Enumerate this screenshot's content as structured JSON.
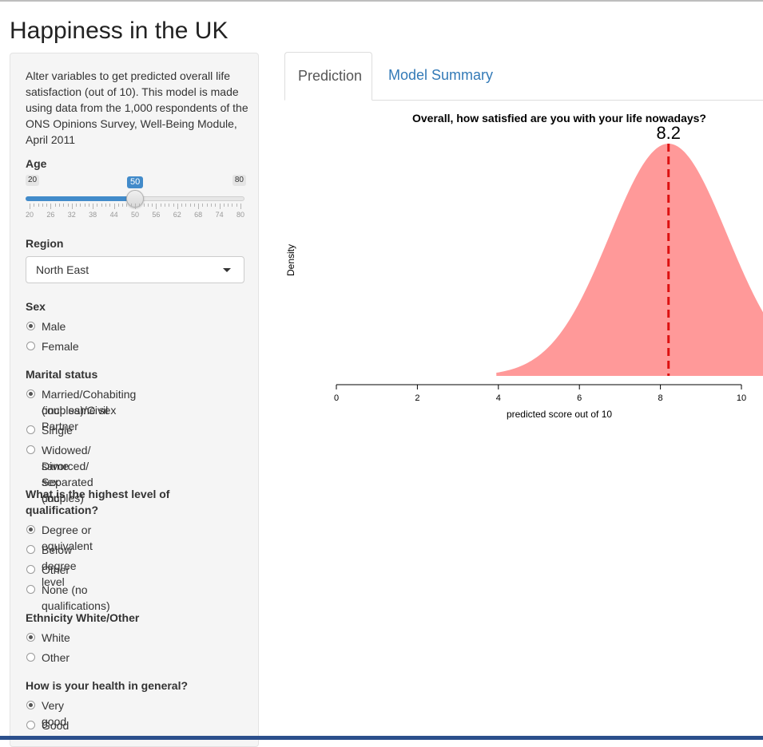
{
  "app": {
    "title": "Happiness in the UK"
  },
  "sidebar": {
    "intro": "Alter variables to get predicted overall life satisfaction (out of 10). This model is made using data from the 1,000 respondents of the ONS Opinions Survey, Well-Being Module, April 2011",
    "age": {
      "label": "Age",
      "min": "20",
      "max": "80",
      "value": "50",
      "value_fraction": 0.5,
      "tick_labels": [
        "20",
        "26",
        "32",
        "38",
        "44",
        "50",
        "56",
        "62",
        "68",
        "74",
        "80"
      ]
    },
    "region": {
      "label": "Region",
      "selected": "North East"
    },
    "sex": {
      "label": "Sex",
      "options": [
        "Male",
        "Female"
      ],
      "selected_index": 0
    },
    "marital": {
      "label": "Marital status",
      "options": [
        [
          "Married/Cohabiting (incl. same sex",
          "couples)/Civil Partner"
        ],
        [
          "Single"
        ],
        [
          "Widowed/ Divorced/ Separated (incl.",
          "same sex couples)"
        ]
      ],
      "selected_index": 0
    },
    "qualification": {
      "label_lines": [
        "What is the highest level of",
        "qualification?"
      ],
      "options": [
        "Degree or equivalent",
        "Below degree level",
        "Other",
        "None (no qualifications)"
      ],
      "selected_index": 0
    },
    "ethnicity": {
      "label": "Ethnicity White/Other",
      "options": [
        "White",
        "Other"
      ],
      "selected_index": 0
    },
    "health": {
      "label": "How is your health in general?",
      "options": [
        "Very good",
        "Good"
      ],
      "selected_index": 0
    }
  },
  "tabs": [
    {
      "label": "Prediction",
      "active": true
    },
    {
      "label": "Model Summary",
      "active": false
    }
  ],
  "chart_data": {
    "type": "area",
    "title": "Overall, how satisfied are you with your life nowadays?",
    "xlabel": "predicted score out of 10",
    "ylabel": "Density",
    "prediction": 8.2,
    "prediction_label": "8.2",
    "xlim": [
      0,
      10
    ],
    "x_ticks": [
      0,
      2,
      4,
      6,
      8,
      10
    ],
    "x_tick_labels": [
      "0",
      "2",
      "4",
      "6",
      "8",
      "10"
    ],
    "curve": {
      "mean": 8.2,
      "sd": 1.45,
      "x_start": 3.95
    },
    "fill_color": "#ff9999",
    "line_color": "#dd1111"
  },
  "colors": {
    "accent": "#428bca",
    "link": "#337ab7"
  }
}
